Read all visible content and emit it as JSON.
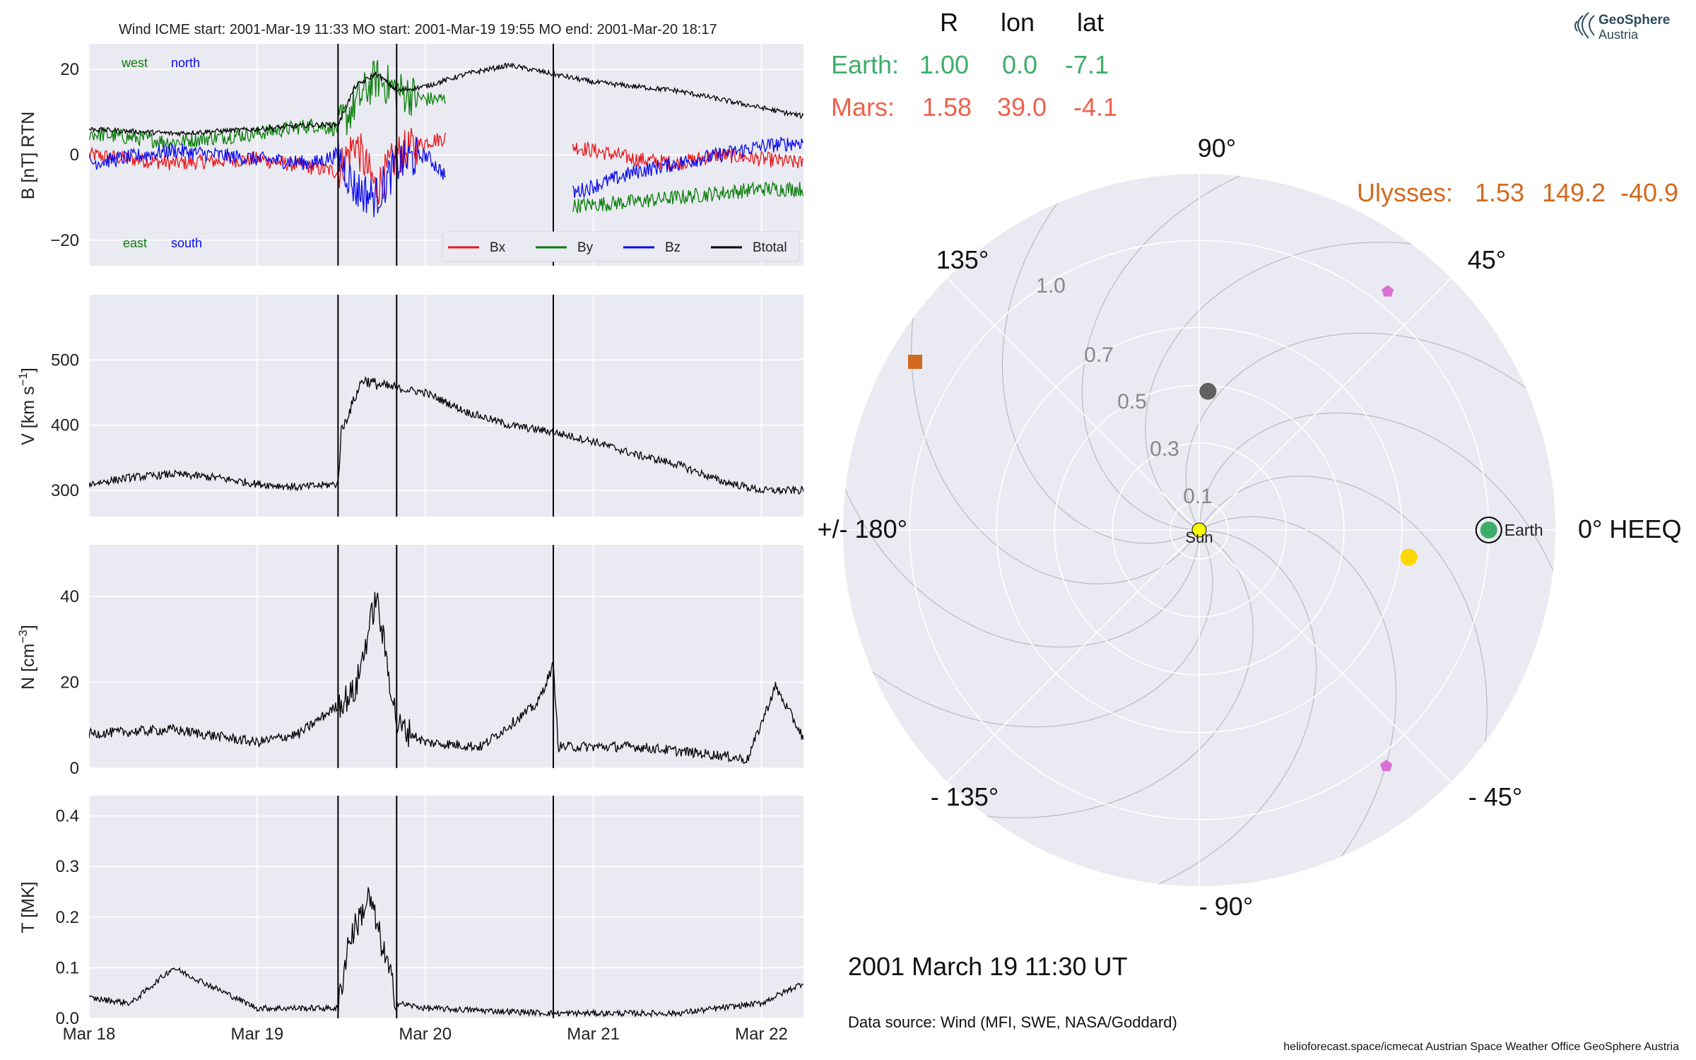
{
  "colors": {
    "bx": "#e8161a",
    "by": "#0a7e0a",
    "bz": "#0a0aee",
    "btot": "#000000",
    "earth": "#3dae6a",
    "mars": "#f0604a",
    "ulysses": "#d2691e",
    "axes_bg": "#eaeaf2",
    "grid": "#ffffff",
    "sun": "#ffff00",
    "yellow_sc": "#ffd700",
    "gray_sc": "#616161",
    "violet_sc": "#da70d6"
  },
  "timeseries_title": "Wind    ICME start: 2001-Mar-19 11:33   MO start: 2001-Mar-19 19:55   MO end: 2001-Mar-20 18:17",
  "labels": {
    "west": "west",
    "north": "north",
    "east": "east",
    "south": "south",
    "date": "2001 March 19  11:30 UT",
    "source": "Data source: Wind (MFI, SWE, NASA/Goddard)",
    "footer": "helioforecast.space/icmecat   Austrian Space Weather Office   GeoSphere Austria",
    "logo_line1": "GeoSphere",
    "logo_line2": "Austria",
    "earth_marker": "Earth",
    "sun_marker": "Sun"
  },
  "pos_table": {
    "header": [
      "R",
      "lon",
      "lat"
    ],
    "rows": [
      {
        "name": "Earth:",
        "R": "1.00",
        "lon": "0.0",
        "lat": "-7.1"
      },
      {
        "name": "Mars:",
        "R": "1.58",
        "lon": "39.0",
        "lat": "-4.1"
      }
    ],
    "ulysses": {
      "name": "Ulysses:",
      "R": "1.53",
      "lon": "149.2",
      "lat": "-40.9"
    }
  },
  "chart_data": [
    {
      "type": "line",
      "panel": "B",
      "ylabel": "B [nT] RTN",
      "ylim": [
        -26,
        26
      ],
      "yticks": [
        -20,
        0,
        20
      ],
      "x_range": [
        "2001-03-18 00:00",
        "2001-03-22 06:00"
      ],
      "xticks": [
        "Mar 18",
        "Mar 19",
        "Mar 20",
        "Mar 21",
        "Mar 22"
      ],
      "event_lines": [
        "2001-03-19 11:33",
        "2001-03-19 19:55",
        "2001-03-20 18:17"
      ],
      "legend": {
        "entries": [
          "Bx",
          "By",
          "Bz",
          "Btotal"
        ],
        "placement": "lower right"
      },
      "gaps": [
        [
          "2001-03-20 03:00",
          "2001-03-20 21:00"
        ]
      ],
      "series": [
        {
          "name": "Bx",
          "x": [
            "2001-03-18 00:00",
            "2001-03-18 12:00",
            "2001-03-19 00:00",
            "2001-03-19 08:00",
            "2001-03-19 11:33",
            "2001-03-19 14:00",
            "2001-03-19 17:00",
            "2001-03-19 20:00",
            "2001-03-20 00:00",
            "2001-03-20 03:00",
            "2001-03-20 21:00",
            "2001-03-21 06:00",
            "2001-03-21 12:00",
            "2001-03-21 18:00",
            "2001-03-22 00:00",
            "2001-03-22 06:00"
          ],
          "y": [
            0,
            -2,
            -1,
            -3,
            -4,
            3,
            -8,
            0,
            3,
            4,
            2,
            -1,
            -2,
            0,
            -1,
            -2
          ]
        },
        {
          "name": "By",
          "x": [
            "2001-03-18 00:00",
            "2001-03-18 12:00",
            "2001-03-19 00:00",
            "2001-03-19 08:00",
            "2001-03-19 11:33",
            "2001-03-19 14:00",
            "2001-03-19 17:00",
            "2001-03-19 20:00",
            "2001-03-20 00:00",
            "2001-03-20 03:00",
            "2001-03-20 21:00",
            "2001-03-21 06:00",
            "2001-03-21 12:00",
            "2001-03-21 18:00",
            "2001-03-22 00:00",
            "2001-03-22 06:00"
          ],
          "y": [
            5,
            3,
            5,
            7,
            6,
            12,
            18,
            15,
            13,
            13,
            -12,
            -11,
            -10,
            -9,
            -8,
            -8
          ]
        },
        {
          "name": "Bz",
          "x": [
            "2001-03-18 00:00",
            "2001-03-18 12:00",
            "2001-03-19 00:00",
            "2001-03-19 08:00",
            "2001-03-19 11:33",
            "2001-03-19 14:00",
            "2001-03-19 17:00",
            "2001-03-19 20:00",
            "2001-03-20 00:00",
            "2001-03-20 03:00",
            "2001-03-20 21:00",
            "2001-03-21 06:00",
            "2001-03-21 12:00",
            "2001-03-21 18:00",
            "2001-03-22 00:00",
            "2001-03-22 06:00"
          ],
          "y": [
            -2,
            1,
            -1,
            -2,
            0,
            -8,
            -10,
            -2,
            0,
            -5,
            -9,
            -4,
            -2,
            0,
            2,
            3
          ]
        },
        {
          "name": "Btotal",
          "x": [
            "2001-03-18 00:00",
            "2001-03-18 12:00",
            "2001-03-19 00:00",
            "2001-03-19 08:00",
            "2001-03-19 11:33",
            "2001-03-19 14:00",
            "2001-03-19 17:00",
            "2001-03-19 20:00",
            "2001-03-20 00:00",
            "2001-03-20 06:00",
            "2001-03-20 12:00",
            "2001-03-20 18:00",
            "2001-03-21 00:00",
            "2001-03-21 12:00",
            "2001-03-22 00:00",
            "2001-03-22 06:00"
          ],
          "y": [
            6,
            5,
            6,
            7,
            7,
            16,
            19,
            15,
            16,
            19,
            21,
            19,
            17,
            15,
            11,
            9
          ]
        }
      ]
    },
    {
      "type": "line",
      "panel": "V",
      "ylabel": "V [km s^-1]",
      "ylim": [
        260,
        600
      ],
      "yticks": [
        300,
        400,
        500
      ],
      "x_range": [
        "2001-03-18 00:00",
        "2001-03-22 06:00"
      ],
      "series": [
        {
          "name": "V",
          "x": [
            "2001-03-18 00:00",
            "2001-03-18 06:00",
            "2001-03-18 12:00",
            "2001-03-18 18:00",
            "2001-03-19 00:00",
            "2001-03-19 06:00",
            "2001-03-19 11:33",
            "2001-03-19 12:00",
            "2001-03-19 15:00",
            "2001-03-19 18:00",
            "2001-03-20 00:00",
            "2001-03-20 06:00",
            "2001-03-20 12:00",
            "2001-03-20 18:00",
            "2001-03-21 00:00",
            "2001-03-21 06:00",
            "2001-03-21 12:00",
            "2001-03-21 18:00",
            "2001-03-22 00:00",
            "2001-03-22 06:00"
          ],
          "y": [
            310,
            320,
            325,
            320,
            310,
            305,
            310,
            390,
            470,
            460,
            450,
            420,
            400,
            390,
            375,
            355,
            340,
            315,
            300,
            300
          ]
        }
      ]
    },
    {
      "type": "line",
      "panel": "N",
      "ylabel": "N [cm^-3]",
      "ylim": [
        0,
        52
      ],
      "yticks": [
        0,
        20,
        40
      ],
      "x_range": [
        "2001-03-18 00:00",
        "2001-03-22 06:00"
      ],
      "series": [
        {
          "name": "N",
          "x": [
            "2001-03-18 00:00",
            "2001-03-18 12:00",
            "2001-03-19 00:00",
            "2001-03-19 06:00",
            "2001-03-19 11:00",
            "2001-03-19 14:00",
            "2001-03-19 17:00",
            "2001-03-19 20:00",
            "2001-03-20 00:00",
            "2001-03-20 08:00",
            "2001-03-20 16:00",
            "2001-03-20 18:17",
            "2001-03-20 19:00",
            "2001-03-21 06:00",
            "2001-03-21 18:00",
            "2001-03-21 22:00",
            "2001-03-22 02:00",
            "2001-03-22 06:00"
          ],
          "y": [
            8,
            9,
            6,
            8,
            14,
            18,
            40,
            10,
            6,
            5,
            15,
            24,
            5,
            5,
            3,
            2,
            19,
            7
          ]
        }
      ]
    },
    {
      "type": "line",
      "panel": "T",
      "ylabel": "T [MK]",
      "ylim": [
        0,
        0.44
      ],
      "yticks": [
        0.0,
        0.1,
        0.2,
        0.3,
        0.4
      ],
      "x_range": [
        "2001-03-18 00:00",
        "2001-03-22 06:00"
      ],
      "xticks": [
        "Mar 18",
        "Mar 19",
        "Mar 20",
        "Mar 21",
        "Mar 22"
      ],
      "series": [
        {
          "name": "T",
          "x": [
            "2001-03-18 00:00",
            "2001-03-18 06:00",
            "2001-03-18 12:00",
            "2001-03-18 18:00",
            "2001-03-19 00:00",
            "2001-03-19 11:33",
            "2001-03-19 13:00",
            "2001-03-19 16:00",
            "2001-03-19 20:00",
            "2001-03-20 00:00",
            "2001-03-20 18:00",
            "2001-03-21 12:00",
            "2001-03-22 00:00",
            "2001-03-22 06:00"
          ],
          "y": [
            0.04,
            0.03,
            0.1,
            0.06,
            0.02,
            0.02,
            0.15,
            0.24,
            0.03,
            0.02,
            0.01,
            0.01,
            0.03,
            0.07
          ]
        }
      ]
    },
    {
      "type": "scatter",
      "panel": "polar",
      "angle_labels": [
        "90°",
        "45°",
        "0° HEEQ",
        "- 45°",
        "- 90°",
        "- 135°",
        "+/- 180°",
        "135°"
      ],
      "r_labels": [
        "1.0",
        "0.7",
        "0.5",
        "0.3",
        "0.1"
      ],
      "r_ticks": [
        0.1,
        0.3,
        0.5,
        0.7,
        1.0
      ],
      "r_max": 1.23,
      "points": [
        {
          "name": "Sun",
          "r": 0.0,
          "lon": 0.0
        },
        {
          "name": "Earth",
          "r": 1.0,
          "lon": 0.0
        },
        {
          "name": "Mars",
          "r": 1.58,
          "lon": 39.0
        },
        {
          "name": "Ulysses",
          "r": 1.53,
          "lon": 149.2
        },
        {
          "name": "yellow",
          "r": 0.73,
          "lon": -7.4
        },
        {
          "name": "gray",
          "r": 0.48,
          "lon": 86.4
        },
        {
          "name": "violet-upper",
          "r": 1.05,
          "lon": 51.7
        },
        {
          "name": "violet-lower",
          "r": 1.04,
          "lon": -51.6
        }
      ]
    }
  ]
}
